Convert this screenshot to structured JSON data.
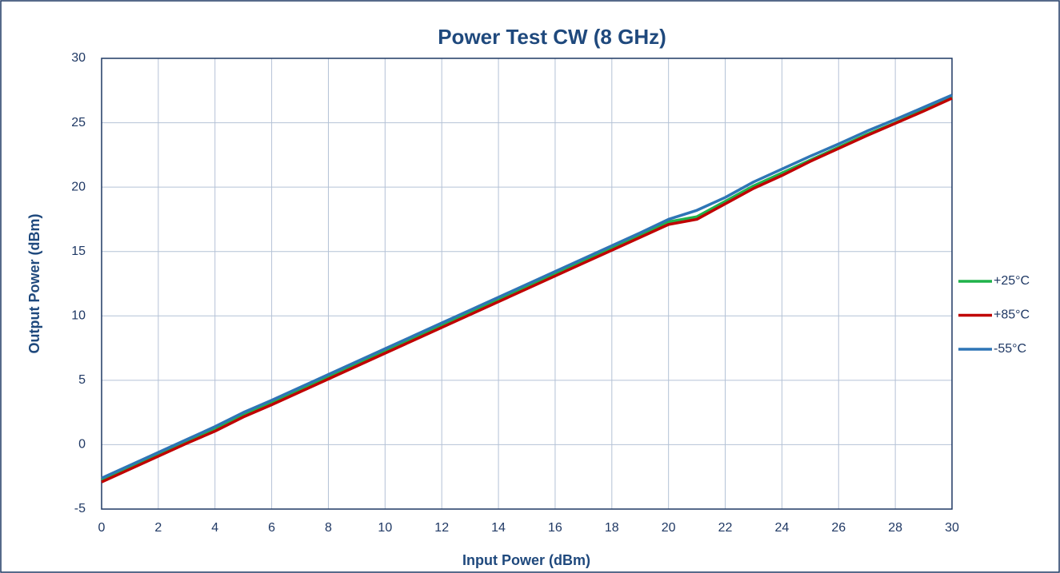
{
  "chart_data": {
    "type": "line",
    "title": "Power Test CW (8 GHz)",
    "x_label": "Input Power (dBm)",
    "y_label": "Output Power (dBm)",
    "x": [
      0,
      1,
      2,
      3,
      4,
      5,
      6,
      7,
      8,
      9,
      10,
      11,
      12,
      13,
      14,
      15,
      16,
      17,
      18,
      19,
      20,
      21,
      22,
      23,
      24,
      25,
      26,
      27,
      28,
      29,
      30
    ],
    "series": [
      {
        "name": "+25°C",
        "color": "#1fb24a",
        "values": [
          -2.75,
          -1.75,
          -0.75,
          0.25,
          1.2,
          2.3,
          3.25,
          4.25,
          5.25,
          6.25,
          7.25,
          8.25,
          9.25,
          10.25,
          11.25,
          12.25,
          13.25,
          14.25,
          15.25,
          16.25,
          17.3,
          17.7,
          18.9,
          20.1,
          21.1,
          22.1,
          23.1,
          24.1,
          25.0,
          26.0,
          27.0
        ]
      },
      {
        "name": "+85°C",
        "color": "#c00000",
        "values": [
          -2.9,
          -1.9,
          -0.9,
          0.1,
          1.05,
          2.15,
          3.1,
          4.1,
          5.1,
          6.1,
          7.1,
          8.1,
          9.1,
          10.1,
          11.1,
          12.1,
          13.1,
          14.1,
          15.1,
          16.1,
          17.1,
          17.5,
          18.7,
          19.9,
          20.9,
          22.0,
          23.0,
          24.0,
          24.95,
          25.9,
          26.9
        ]
      },
      {
        "name": "-55°C",
        "color": "#2e75b6",
        "values": [
          -2.6,
          -1.6,
          -0.6,
          0.4,
          1.4,
          2.5,
          3.45,
          4.45,
          5.45,
          6.45,
          7.45,
          8.45,
          9.45,
          10.45,
          11.45,
          12.45,
          13.45,
          14.45,
          15.45,
          16.45,
          17.5,
          18.2,
          19.2,
          20.4,
          21.4,
          22.4,
          23.35,
          24.35,
          25.25,
          26.2,
          27.15
        ]
      }
    ],
    "xlim": [
      0,
      30
    ],
    "xticks": [
      0,
      2,
      4,
      6,
      8,
      10,
      12,
      14,
      16,
      18,
      20,
      22,
      24,
      26,
      28,
      30
    ],
    "ylim": [
      -5,
      30
    ],
    "yticks": [
      -5,
      0,
      5,
      10,
      15,
      20,
      25,
      30
    ],
    "grid": true,
    "legend": "right"
  }
}
